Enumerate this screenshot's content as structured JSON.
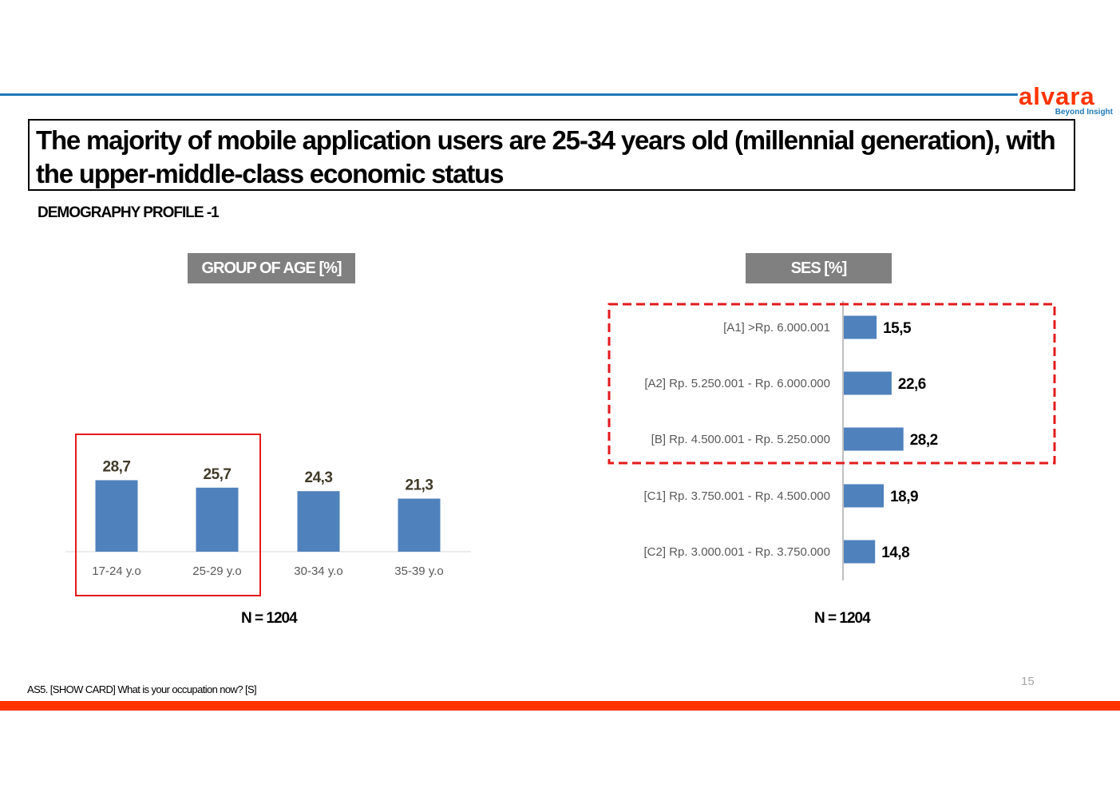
{
  "colors": {
    "accent_blue": "#1f7ab8",
    "brand_orange": "#ff3300",
    "bar_blue": "#4f81bd",
    "highlight_red": "#e31a1c",
    "header_gray": "#808080",
    "value_label_dark": "#403a28"
  },
  "logo": {
    "name": "alvara",
    "tagline": "Beyond Insight"
  },
  "title": "The majority of mobile application users are 25-34 years old (millennial generation), with the upper-middle-class economic status",
  "subtitle": "DEMOGRAPHY PROFILE -1",
  "chart_data": [
    {
      "type": "bar",
      "header": "GROUP OF AGE [%]",
      "categories": [
        "17-24 y.o",
        "25-29 y.o",
        "30-34 y.o",
        "35-39 y.o"
      ],
      "values": [
        28.7,
        25.7,
        24.3,
        21.3
      ],
      "value_labels": [
        "28,7",
        "25,7",
        "24,3",
        "21,3"
      ],
      "highlighted_categories": [
        "17-24 y.o",
        "25-29 y.o"
      ],
      "sample_size": "N = 1204"
    },
    {
      "type": "bar",
      "orientation": "horizontal",
      "header": "SES [%]",
      "categories": [
        "[A1]  >Rp. 6.000.001",
        "[A2] Rp. 5.250.001 - Rp. 6.000.000",
        "[B] Rp. 4.500.001 - Rp. 5.250.000",
        "[C1] Rp. 3.750.001 - Rp. 4.500.000",
        "[C2] Rp. 3.000.001 - Rp. 3.750.000"
      ],
      "values": [
        15.5,
        22.6,
        28.2,
        18.9,
        14.8
      ],
      "value_labels": [
        "15,5",
        "22,6",
        "28,2",
        "18,9",
        "14,8"
      ],
      "highlighted_categories": [
        "[A1]  >Rp. 6.000.001",
        "[A2] Rp. 5.250.001 - Rp. 6.000.000",
        "[B] Rp. 4.500.001 - Rp. 5.250.000"
      ],
      "sample_size": "N = 1204"
    }
  ],
  "footnote": "AS5. [SHOW CARD] What is your occupation now? [S]",
  "page_number": "15"
}
